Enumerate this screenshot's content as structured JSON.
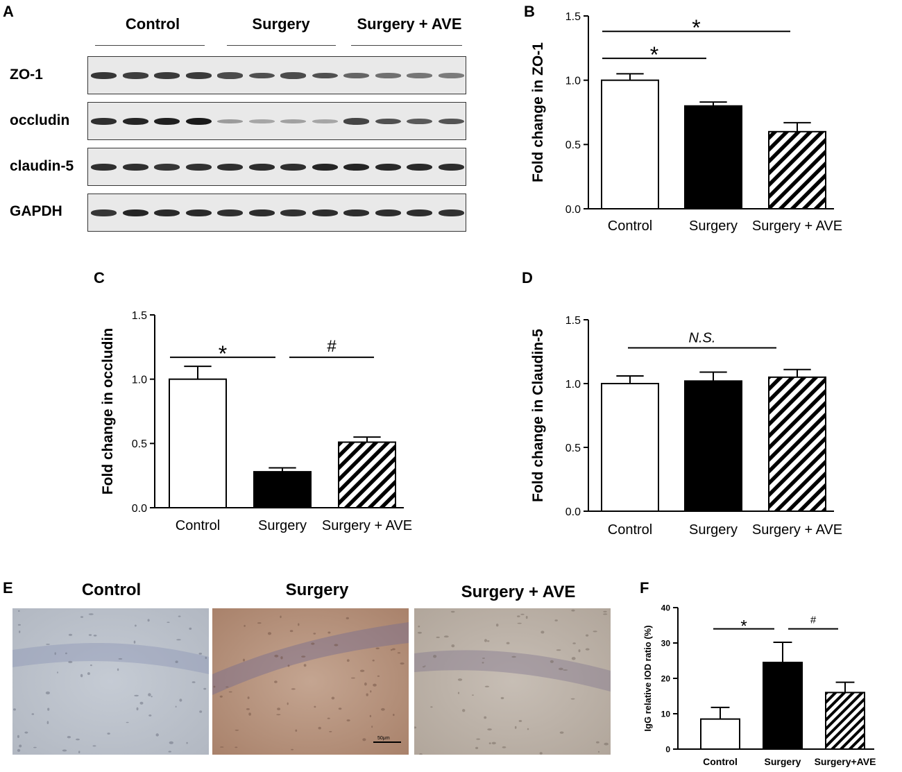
{
  "panels": {
    "A": "A",
    "B": "B",
    "C": "C",
    "D": "D",
    "E": "E",
    "F": "F"
  },
  "western_blot": {
    "groups": [
      "Control",
      "Surgery",
      "Surgery + AVE"
    ],
    "proteins": [
      {
        "label": "ZO-1",
        "intensity": [
          0.82,
          0.78,
          0.8,
          0.8,
          0.72,
          0.7,
          0.72,
          0.7,
          0.6,
          0.55,
          0.52,
          0.5
        ]
      },
      {
        "label": "occludin",
        "intensity": [
          0.85,
          0.9,
          0.92,
          0.95,
          0.35,
          0.3,
          0.32,
          0.3,
          0.75,
          0.7,
          0.65,
          0.68
        ]
      },
      {
        "label": "claudin-5",
        "intensity": [
          0.85,
          0.85,
          0.82,
          0.84,
          0.85,
          0.86,
          0.85,
          0.9,
          0.9,
          0.88,
          0.88,
          0.86
        ]
      },
      {
        "label": "GAPDH",
        "intensity": [
          0.82,
          0.9,
          0.88,
          0.88,
          0.85,
          0.86,
          0.84,
          0.86,
          0.86,
          0.86,
          0.86,
          0.84
        ]
      }
    ]
  },
  "histology": {
    "labels": [
      "Control",
      "Surgery",
      "Surgery + AVE"
    ],
    "scale_bar": "50μm",
    "tissue_colors": [
      "#b9bfc9",
      "#b99882",
      "#bdb3a9"
    ]
  },
  "chart_data": [
    {
      "id": "B",
      "type": "bar",
      "categories": [
        "Control",
        "Surgery",
        "Surgery + AVE"
      ],
      "values": [
        1.0,
        0.8,
        0.6
      ],
      "errors": [
        0.05,
        0.03,
        0.07
      ],
      "fills": [
        "white",
        "black",
        "hatch"
      ],
      "ylabel": "Fold change in ZO-1",
      "ylim": [
        0,
        1.5
      ],
      "yticks": [
        "0.0",
        "0.5",
        "1.0",
        "1.5"
      ],
      "annotations": [
        {
          "from": 0,
          "to": 1,
          "level": 1.17,
          "symbol": "*"
        },
        {
          "from": 0,
          "to": 2,
          "level": 1.38,
          "symbol": "*"
        }
      ]
    },
    {
      "id": "C",
      "type": "bar",
      "categories": [
        "Control",
        "Surgery",
        "Surgery + AVE"
      ],
      "values": [
        1.0,
        0.28,
        0.51
      ],
      "errors": [
        0.1,
        0.03,
        0.04
      ],
      "fills": [
        "white",
        "black",
        "hatch"
      ],
      "ylabel": "Fold change in occludin",
      "ylim": [
        0,
        1.5
      ],
      "yticks": [
        "0.0",
        "0.5",
        "1.0",
        "1.5"
      ],
      "annotations": [
        {
          "from": 0,
          "to": 1,
          "level": 1.17,
          "symbol": "*"
        },
        {
          "from": 1,
          "to": 2,
          "level": 1.17,
          "symbol": "#"
        }
      ]
    },
    {
      "id": "D",
      "type": "bar",
      "categories": [
        "Control",
        "Surgery",
        "Surgery + AVE"
      ],
      "values": [
        1.0,
        1.02,
        1.05
      ],
      "errors": [
        0.06,
        0.07,
        0.06
      ],
      "fills": [
        "white",
        "black",
        "hatch"
      ],
      "ylabel": "Fold change in Claudin-5",
      "ylim": [
        0,
        1.5
      ],
      "yticks": [
        "0.0",
        "0.5",
        "1.0",
        "1.5"
      ],
      "annotations": [
        {
          "from": 0,
          "to": 2,
          "level": 1.28,
          "symbol": "N.S.",
          "italic": true
        }
      ]
    },
    {
      "id": "F",
      "type": "bar",
      "categories": [
        "Control",
        "Surgery",
        "Surgery+AVE"
      ],
      "values": [
        8.5,
        24.5,
        16
      ],
      "errors": [
        3.3,
        5.7,
        2.9
      ],
      "fills": [
        "white",
        "black",
        "hatch"
      ],
      "ylabel": "IgG relative IOD ratio (%)",
      "ylim": [
        0,
        40
      ],
      "yticks": [
        "0",
        "10",
        "20",
        "30",
        "40"
      ],
      "annotations": [
        {
          "from": 0,
          "to": 1,
          "level": 34,
          "symbol": "*"
        },
        {
          "from": 1,
          "to": 2,
          "level": 34,
          "symbol": "#"
        }
      ]
    }
  ]
}
